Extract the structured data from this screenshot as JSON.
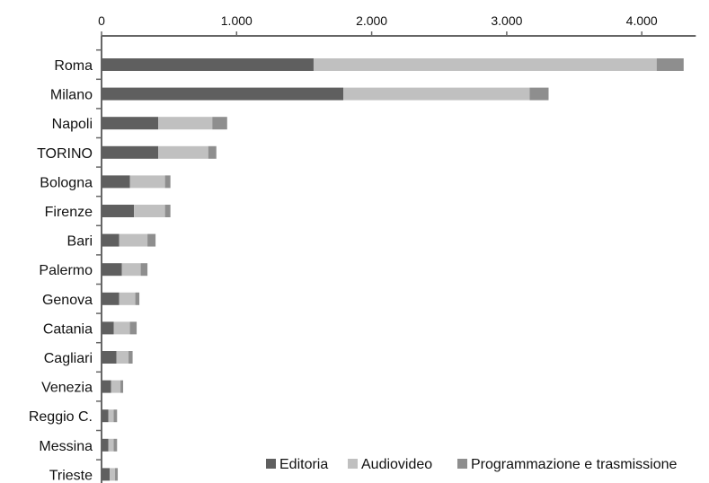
{
  "chart_data": {
    "type": "bar",
    "orientation": "horizontal",
    "stacked": true,
    "title": "",
    "xlabel": "",
    "ylabel": "",
    "xlim": [
      0,
      4400
    ],
    "xticks": [
      0,
      1000,
      2000,
      3000,
      4000
    ],
    "xtick_labels": [
      "0",
      "1.000",
      "2.000",
      "3.000",
      "4.000"
    ],
    "axis_position": "top",
    "grid": false,
    "legend_position": "bottom-right",
    "categories": [
      "Roma",
      "Milano",
      "Napoli",
      "TORINO",
      "Bologna",
      "Firenze",
      "Bari",
      "Palermo",
      "Genova",
      "Catania",
      "Cagliari",
      "Venezia",
      "Reggio C.",
      "Messina",
      "Trieste"
    ],
    "series": [
      {
        "name": "Editoria",
        "color": "#5f5f5f",
        "values": [
          1570,
          1790,
          420,
          420,
          210,
          240,
          130,
          150,
          130,
          90,
          110,
          70,
          50,
          50,
          60
        ]
      },
      {
        "name": "Audiovideo",
        "color": "#c0c0c0",
        "values": [
          2540,
          1380,
          400,
          370,
          260,
          230,
          210,
          140,
          120,
          120,
          90,
          70,
          40,
          40,
          40
        ]
      },
      {
        "name": "Programmazione e trasmissione",
        "color": "#8e8e8e",
        "values": [
          200,
          140,
          110,
          60,
          40,
          40,
          60,
          50,
          30,
          50,
          30,
          20,
          25,
          25,
          20
        ]
      }
    ]
  }
}
